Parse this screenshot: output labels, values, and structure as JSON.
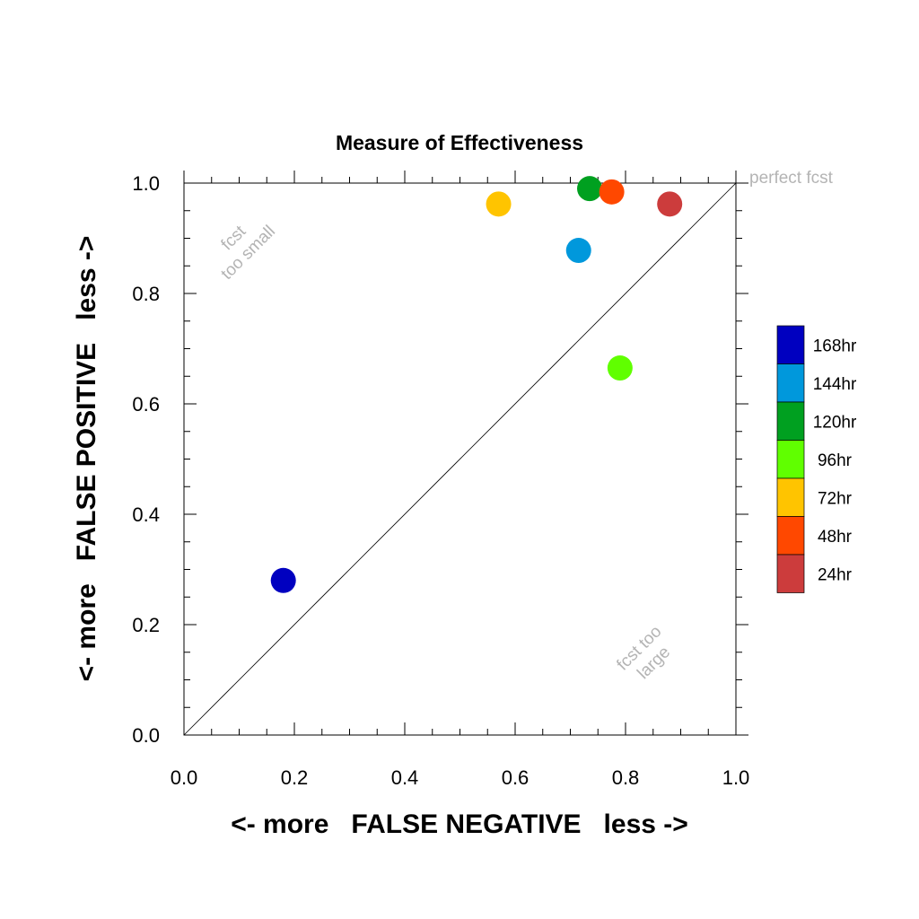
{
  "chart_data": {
    "type": "scatter",
    "title": "Measure of Effectiveness",
    "xlabel": "<- more   FALSE NEGATIVE   less ->",
    "ylabel": "<- more   FALSE POSITIVE   less ->",
    "xlim": [
      0,
      1
    ],
    "ylim": [
      0,
      1
    ],
    "xticks": [
      "0.0",
      "0.2",
      "0.4",
      "0.6",
      "0.8",
      "1.0"
    ],
    "yticks": [
      "0.0",
      "0.2",
      "0.4",
      "0.6",
      "0.8",
      "1.0"
    ],
    "grid": false,
    "diagonal_reference_line": true,
    "legend_position": "right",
    "annotations": {
      "perfect": "perfect fcst",
      "too_small": [
        "fcst",
        "too small"
      ],
      "too_large": [
        "fcst too",
        "large"
      ]
    },
    "series": [
      {
        "name": "168hr",
        "color": "#0000c0",
        "x": 0.18,
        "y": 0.28
      },
      {
        "name": "144hr",
        "color": "#0098dc",
        "x": 0.715,
        "y": 0.878
      },
      {
        "name": "120hr",
        "color": "#00a020",
        "x": 0.735,
        "y": 0.99
      },
      {
        "name": "96hr",
        "color": "#60ff00",
        "x": 0.79,
        "y": 0.665
      },
      {
        "name": "72hr",
        "color": "#ffc400",
        "x": 0.57,
        "y": 0.962
      },
      {
        "name": "48hr",
        "color": "#ff4800",
        "x": 0.775,
        "y": 0.984
      },
      {
        "name": "24hr",
        "color": "#cc3c3c",
        "x": 0.88,
        "y": 0.962
      }
    ]
  }
}
